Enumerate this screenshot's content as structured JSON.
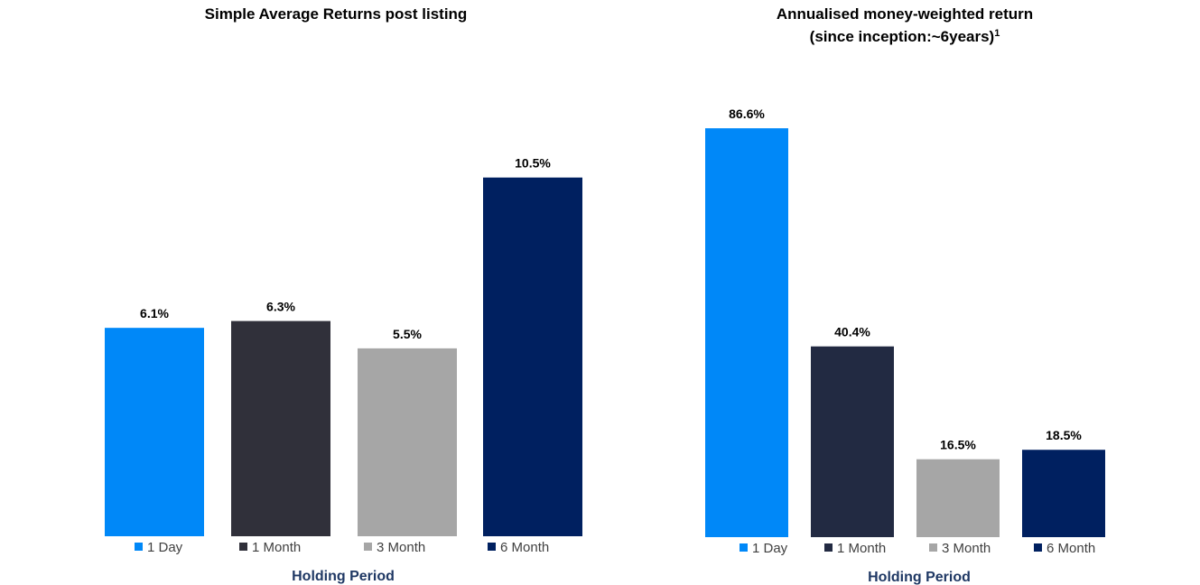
{
  "chart_data": [
    {
      "type": "bar",
      "title": "Simple Average Returns post listing",
      "title_superscript": "",
      "xlabel": "Holding Period",
      "ylabel": "",
      "categories": [
        "1 Day",
        "1 Month",
        "3 Month",
        "6 Month"
      ],
      "values": [
        6.1,
        6.3,
        5.5,
        10.5
      ],
      "value_labels": [
        "6.1%",
        "6.3%",
        "5.5%",
        "10.5%"
      ],
      "unit": "%",
      "ylim": [
        0,
        13.9
      ],
      "grid": false,
      "legend_position": "bottom",
      "colors": [
        "#0088f8",
        "#30303a",
        "#a6a6a6",
        "#002060"
      ]
    },
    {
      "type": "bar",
      "title": "Annualised money-weighted return",
      "title_line2": "(since inception:~6years)",
      "title_superscript": "1",
      "xlabel": "Holding Period",
      "ylabel": "",
      "categories": [
        "1 Day",
        "1 Month",
        "3 Month",
        "6 Month"
      ],
      "values": [
        86.6,
        40.4,
        16.5,
        18.5
      ],
      "value_labels": [
        "86.6%",
        "40.4%",
        "16.5%",
        "18.5%"
      ],
      "unit": "%",
      "ylim": [
        0,
        100
      ],
      "grid": false,
      "legend_position": "bottom",
      "colors": [
        "#0088f8",
        "#222a42",
        "#a6a6a6",
        "#002060"
      ]
    }
  ]
}
